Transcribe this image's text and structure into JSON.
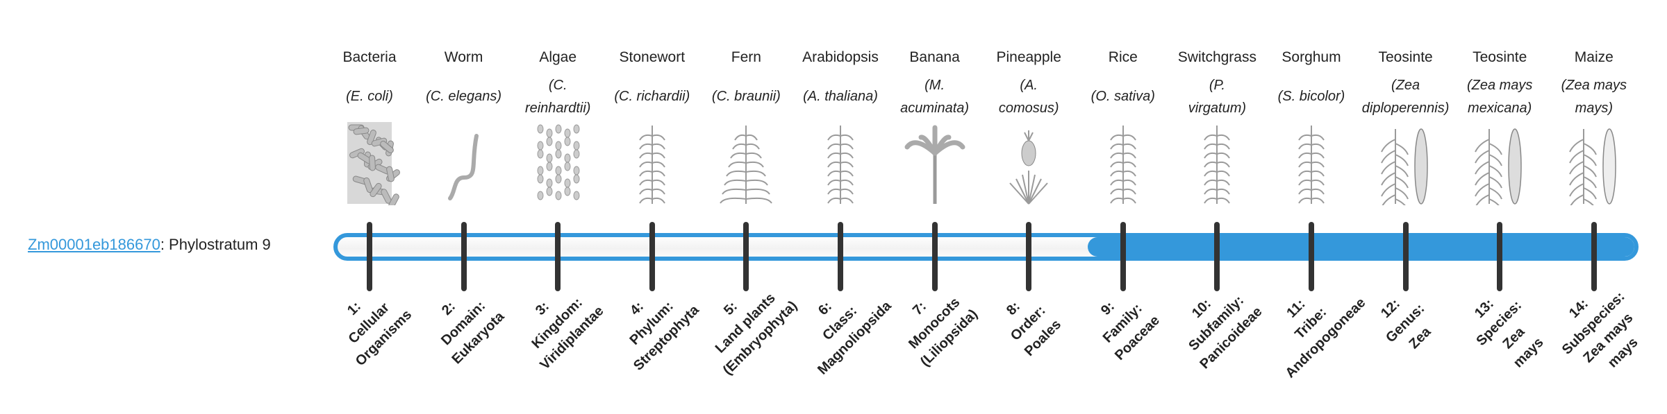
{
  "gene": {
    "id": "Zm00001eb186670",
    "suffix": ": Phylostratum 9",
    "phylostratum": 9
  },
  "colors": {
    "accent": "#3498db",
    "tick": "#333333",
    "link": "#3498db"
  },
  "strata": [
    {
      "common": "Bacteria",
      "sci_lines": [
        "(E. coli)"
      ],
      "icon": "bacteria-icon",
      "label_lines": [
        "1:",
        "Cellular",
        "Organisms"
      ]
    },
    {
      "common": "Worm",
      "sci_lines": [
        "(C. elegans)"
      ],
      "icon": "worm-icon",
      "label_lines": [
        "2:",
        "Domain:",
        "Eukaryota"
      ]
    },
    {
      "common": "Algae",
      "sci_lines": [
        "(C.",
        "reinhardtii)"
      ],
      "icon": "algae-icon",
      "label_lines": [
        "3:",
        "Kingdom:",
        "Viridiplantae"
      ]
    },
    {
      "common": "Stonewort",
      "sci_lines": [
        "(C. richardii)"
      ],
      "icon": "stonewort-icon",
      "label_lines": [
        "4:",
        "Phylum:",
        "Streptophyta"
      ]
    },
    {
      "common": "Fern",
      "sci_lines": [
        "(C. braunii)"
      ],
      "icon": "fern-icon",
      "label_lines": [
        "5:",
        "Land plants",
        "(Embryophyta)"
      ]
    },
    {
      "common": "Arabidopsis",
      "sci_lines": [
        "(A. thaliana)"
      ],
      "icon": "arabidopsis-icon",
      "label_lines": [
        "6:",
        "Class:",
        "Magnoliopsida"
      ]
    },
    {
      "common": "Banana",
      "sci_lines": [
        "(M.",
        "acuminata)"
      ],
      "icon": "banana-icon",
      "label_lines": [
        "7:",
        "Monocots",
        "(Liliopsida)"
      ]
    },
    {
      "common": "Pineapple",
      "sci_lines": [
        "(A.",
        "comosus)"
      ],
      "icon": "pineapple-icon",
      "label_lines": [
        "8:",
        "Order:",
        "Poales"
      ]
    },
    {
      "common": "Rice",
      "sci_lines": [
        "(O. sativa)"
      ],
      "icon": "rice-icon",
      "label_lines": [
        "9:",
        "Family:",
        "Poaceae"
      ]
    },
    {
      "common": "Switchgrass",
      "sci_lines": [
        "(P.",
        "virgatum)"
      ],
      "icon": "switchgrass-icon",
      "label_lines": [
        "10:",
        "Subfamily:",
        "Panicoideae"
      ]
    },
    {
      "common": "Sorghum",
      "sci_lines": [
        "(S. bicolor)"
      ],
      "icon": "sorghum-icon",
      "label_lines": [
        "11:",
        "Tribe:",
        "Andropogoneae"
      ]
    },
    {
      "common": "Teosinte",
      "sci_lines": [
        "(Zea",
        "diploperennis)"
      ],
      "icon": "teosinte-icon",
      "label_lines": [
        "12:",
        "Genus:",
        "Zea"
      ]
    },
    {
      "common": "Teosinte",
      "sci_lines": [
        "(Zea mays",
        "mexicana)"
      ],
      "icon": "teosinte-icon",
      "label_lines": [
        "13:",
        "Species:",
        "Zea",
        "mays"
      ]
    },
    {
      "common": "Maize",
      "sci_lines": [
        "(Zea mays",
        "mays)"
      ],
      "icon": "maize-icon",
      "label_lines": [
        "14:",
        "Subspecies:",
        "Zea mays",
        "mays"
      ]
    }
  ]
}
